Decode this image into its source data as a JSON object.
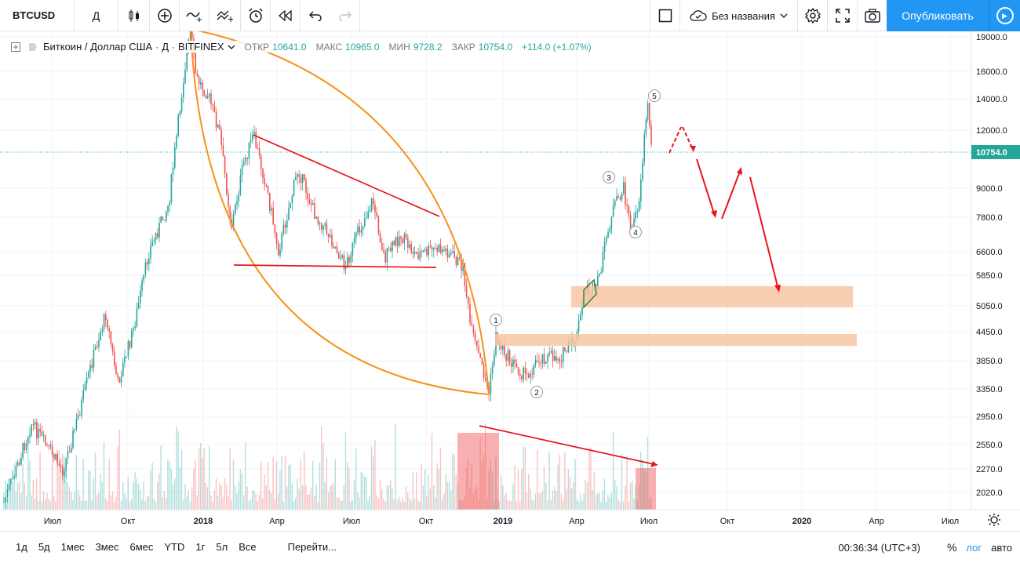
{
  "toolbar": {
    "symbol": "BTCUSD",
    "interval": "Д",
    "layout_name": "Без названия",
    "publish_label": "Опубликовать"
  },
  "legend": {
    "instrument": "Биткоин / Доллар США",
    "interval": "Д",
    "exchange": "BITFINEX",
    "open_label": "ОТКР",
    "open": "10641.0",
    "high_label": "МАКС",
    "high": "10965.0",
    "low_label": "МИН",
    "low": "9728.2",
    "close_label": "ЗАКР",
    "close": "10754.0",
    "change": "+114.0 (+1.07%)"
  },
  "price_axis": {
    "current_price": "10754.0",
    "ticks": [
      "19000.0",
      "16000.0",
      "14000.0",
      "12000.0",
      "9000.0",
      "7800.0",
      "6600.0",
      "5850.0",
      "5050.0",
      "4450.0",
      "3850.0",
      "3350.0",
      "2950.0",
      "2550.0",
      "2270.0",
      "2020.0"
    ]
  },
  "time_axis": {
    "ticks": [
      "Июл",
      "Окт",
      "2018",
      "Апр",
      "Июл",
      "Окт",
      "2019",
      "Апр",
      "Июл",
      "Окт",
      "2020",
      "Апр",
      "Июл"
    ]
  },
  "wave_labels": [
    "1",
    "2",
    "3",
    "4",
    "5"
  ],
  "colors": {
    "accent": "#2196f3",
    "up": "#26a69a",
    "down": "#ef5350",
    "annotation_red": "#e8141a",
    "arc_orange": "#f7931a",
    "zone": "#f7c7a3"
  },
  "bottombar": {
    "ranges": [
      "1д",
      "5д",
      "1мес",
      "3мес",
      "6мес",
      "YTD",
      "1г",
      "5л",
      "Все"
    ],
    "goto": "Перейти...",
    "clock": "00:36:34 (UTC+3)",
    "percent": "%",
    "log": "лог",
    "auto": "авто"
  }
}
